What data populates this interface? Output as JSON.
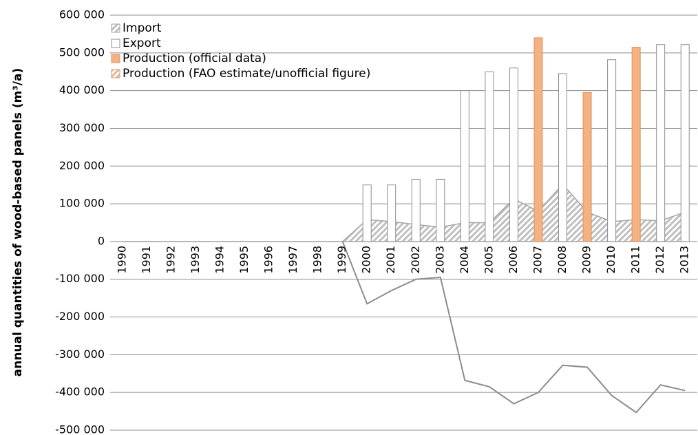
{
  "chart_data": {
    "type": "bar",
    "y_label": "annual quantities of wood-based panels (m³/a)",
    "categories": [
      "1990",
      "1991",
      "1992",
      "1993",
      "1994",
      "1995",
      "1996",
      "1997",
      "1998",
      "1999",
      "2000",
      "2001",
      "2002",
      "2003",
      "2004",
      "2005",
      "2006",
      "2007",
      "2008",
      "2009",
      "2010",
      "2011",
      "2012",
      "2013"
    ],
    "series": [
      {
        "name": "Import",
        "type": "area",
        "pattern": "hatch",
        "color": "#a6a6a6",
        "values": [
          0,
          0,
          0,
          0,
          0,
          0,
          0,
          0,
          0,
          0,
          58000,
          53000,
          45000,
          38000,
          50000,
          50000,
          113000,
          80000,
          152000,
          78000,
          53000,
          58000,
          55000,
          78000
        ]
      },
      {
        "name": "Export",
        "type": "bar",
        "color": "#ffffff",
        "values": [
          null,
          null,
          null,
          null,
          null,
          null,
          null,
          null,
          null,
          null,
          150000,
          150000,
          165000,
          165000,
          400000,
          450000,
          460000,
          null,
          445000,
          null,
          482000,
          null,
          522000,
          522000
        ]
      },
      {
        "name": "Production (official data)",
        "type": "bar",
        "color": "#f4b183",
        "values": [
          null,
          null,
          null,
          null,
          null,
          null,
          null,
          null,
          null,
          null,
          null,
          null,
          null,
          null,
          null,
          null,
          null,
          540000,
          null,
          395000,
          null,
          515000,
          null,
          null
        ]
      },
      {
        "name": "Production (FAO estimate/unofficial figure)",
        "type": "bar",
        "pattern": "hatch",
        "color": "#f4b183",
        "values": [
          null,
          null,
          null,
          null,
          null,
          null,
          null,
          null,
          null,
          null,
          null,
          null,
          null,
          null,
          null,
          null,
          null,
          null,
          null,
          null,
          null,
          null,
          null,
          null
        ]
      },
      {
        "type": "line",
        "color": "#8c8c8c",
        "values": [
          null,
          null,
          null,
          null,
          null,
          null,
          null,
          null,
          null,
          0,
          -165000,
          -130000,
          -100000,
          -95000,
          -368000,
          -385000,
          -430000,
          -400000,
          -328000,
          -333000,
          -408000,
          -453000,
          -380000,
          -395000
        ]
      }
    ],
    "ylim": [
      -500000,
      600000
    ],
    "yticks": [
      {
        "value": -500000,
        "label": "-500 000"
      },
      {
        "value": -400000,
        "label": "-400 000"
      },
      {
        "value": -300000,
        "label": "-300 000"
      },
      {
        "value": -200000,
        "label": "-200 000"
      },
      {
        "value": -100000,
        "label": "-100 000"
      },
      0,
      {
        "value": 100000,
        "label": "100 000"
      },
      {
        "value": 200000,
        "label": "200 000"
      },
      {
        "value": 300000,
        "label": "300 000"
      },
      {
        "value": 400000,
        "label": "400 000"
      },
      {
        "value": 500000,
        "label": "500 000"
      },
      {
        "value": 600000,
        "label": "600 000"
      }
    ],
    "grid": true,
    "legend": "top-left"
  }
}
